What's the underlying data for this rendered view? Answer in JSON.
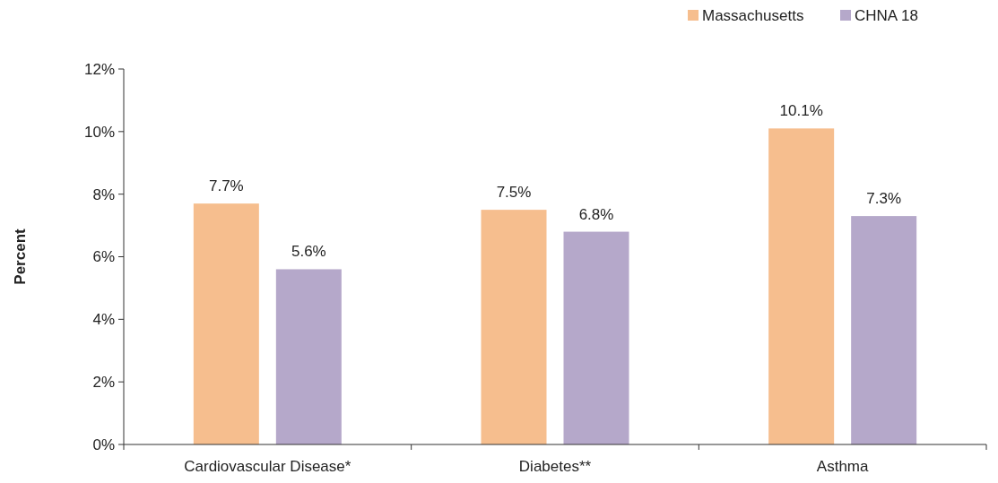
{
  "chart_data": {
    "type": "bar",
    "ylabel": "Percent",
    "categories": [
      "Cardiovascular Disease*",
      "Diabetes**",
      "Asthma"
    ],
    "series": [
      {
        "name": "Massachusetts",
        "color": "#f6be8e",
        "values": [
          7.7,
          7.5,
          10.1
        ],
        "value_labels": [
          "7.7%",
          "7.5%",
          "10.1%"
        ]
      },
      {
        "name": "CHNA 18",
        "color": "#b5a8ca",
        "values": [
          5.6,
          6.8,
          7.3
        ],
        "value_labels": [
          "5.6%",
          "6.8%",
          "7.3%"
        ]
      }
    ],
    "ylim": [
      0,
      12
    ],
    "yticks": [
      {
        "value": 0,
        "label": "0%"
      },
      {
        "value": 2,
        "label": "2%"
      },
      {
        "value": 4,
        "label": "4%"
      },
      {
        "value": 6,
        "label": "6%"
      },
      {
        "value": 8,
        "label": "8%"
      },
      {
        "value": 10,
        "label": "10%"
      },
      {
        "value": 12,
        "label": "12%"
      }
    ],
    "grid": false,
    "legend": "top right"
  }
}
